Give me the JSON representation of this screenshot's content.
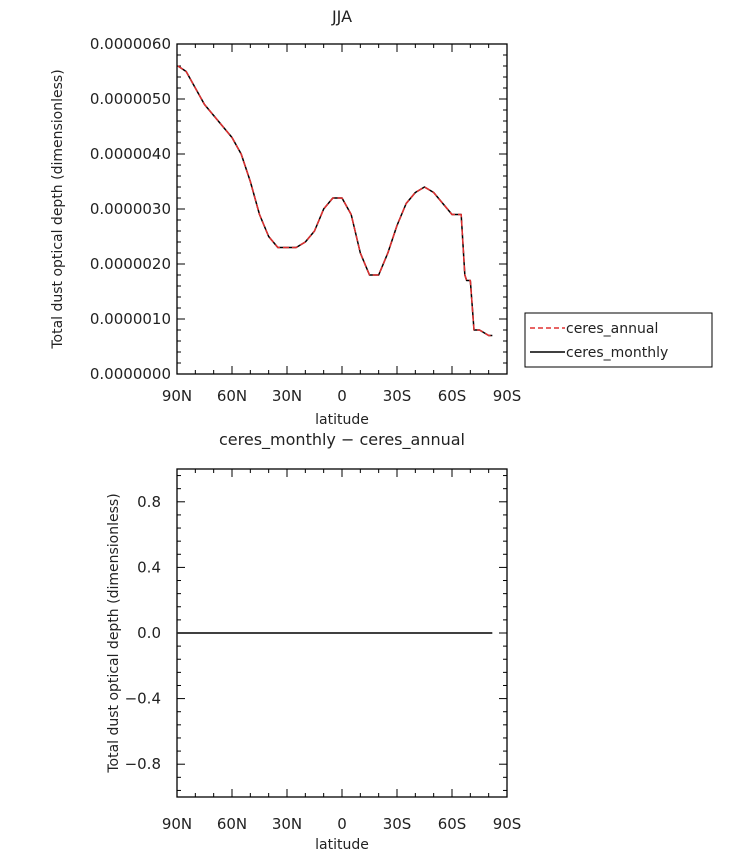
{
  "chart_data": [
    {
      "type": "line",
      "title": "JJA",
      "xlabel": "latitude",
      "ylabel": "Total dust optical depth (dimensionless)",
      "xlim": [
        -90,
        90
      ],
      "ylim": [
        0,
        6e-06
      ],
      "x_ticks": [
        -90,
        -60,
        -30,
        0,
        30,
        60,
        90
      ],
      "x_tick_labels": [
        "90N",
        "60N",
        "30N",
        "0",
        "30S",
        "60S",
        "90S"
      ],
      "y_ticks": [
        0,
        1e-06,
        2e-06,
        3e-06,
        4e-06,
        5e-06,
        6e-06
      ],
      "y_tick_labels": [
        "0.0000000",
        "0.0000010",
        "0.0000020",
        "0.0000030",
        "0.0000040",
        "0.0000050",
        "0.0000060"
      ],
      "legend_position": "right",
      "series": [
        {
          "name": "ceres_annual",
          "color": "#e03030",
          "style": "dashed",
          "x": [
            -89.5,
            -85,
            -80,
            -75,
            -70,
            -65,
            -60,
            -55,
            -50,
            -45,
            -40,
            -35,
            -30,
            -25,
            -20,
            -15,
            -10,
            -5,
            0,
            5,
            10,
            15,
            20,
            25,
            30,
            35,
            40,
            45,
            50,
            55,
            60,
            65,
            67,
            68,
            70,
            72,
            75,
            80,
            82
          ],
          "y": [
            5.6e-06,
            5.5e-06,
            5.2e-06,
            4.9e-06,
            4.7e-06,
            4.5e-06,
            4.3e-06,
            4e-06,
            3.5e-06,
            2.9e-06,
            2.5e-06,
            2.3e-06,
            2.3e-06,
            2.3e-06,
            2.4e-06,
            2.6e-06,
            3e-06,
            3.2e-06,
            3.2e-06,
            2.9e-06,
            2.2e-06,
            1.8e-06,
            1.8e-06,
            2.2e-06,
            2.7e-06,
            3.1e-06,
            3.3e-06,
            3.4e-06,
            3.3e-06,
            3.1e-06,
            2.9e-06,
            2.9e-06,
            1.8e-06,
            1.7e-06,
            1.7e-06,
            8e-07,
            8e-07,
            7e-07,
            7e-07
          ]
        },
        {
          "name": "ceres_monthly",
          "color": "#000000",
          "style": "solid",
          "x": [
            -89.5,
            -85,
            -80,
            -75,
            -70,
            -65,
            -60,
            -55,
            -50,
            -45,
            -40,
            -35,
            -30,
            -25,
            -20,
            -15,
            -10,
            -5,
            0,
            5,
            10,
            15,
            20,
            25,
            30,
            35,
            40,
            45,
            50,
            55,
            60,
            65,
            67,
            68,
            70,
            72,
            75,
            80,
            82
          ],
          "y": [
            5.6e-06,
            5.5e-06,
            5.2e-06,
            4.9e-06,
            4.7e-06,
            4.5e-06,
            4.3e-06,
            4e-06,
            3.5e-06,
            2.9e-06,
            2.5e-06,
            2.3e-06,
            2.3e-06,
            2.3e-06,
            2.4e-06,
            2.6e-06,
            3e-06,
            3.2e-06,
            3.2e-06,
            2.9e-06,
            2.2e-06,
            1.8e-06,
            1.8e-06,
            2.2e-06,
            2.7e-06,
            3.1e-06,
            3.3e-06,
            3.4e-06,
            3.3e-06,
            3.1e-06,
            2.9e-06,
            2.9e-06,
            1.8e-06,
            1.7e-06,
            1.7e-06,
            8e-07,
            8e-07,
            7e-07,
            7e-07
          ]
        }
      ]
    },
    {
      "type": "line",
      "title": "ceres_monthly − ceres_annual",
      "xlabel": "latitude",
      "ylabel": "Total dust optical depth (dimensionless)",
      "xlim": [
        -90,
        90
      ],
      "ylim": [
        -1,
        1
      ],
      "x_ticks": [
        -90,
        -60,
        -30,
        0,
        30,
        60,
        90
      ],
      "x_tick_labels": [
        "90N",
        "60N",
        "30N",
        "0",
        "30S",
        "60S",
        "90S"
      ],
      "y_ticks": [
        -0.8,
        -0.4,
        0.0,
        0.4,
        0.8
      ],
      "y_tick_labels": [
        "−0.8",
        "−0.4",
        "0.0",
        "0.4",
        "0.8"
      ],
      "series": [
        {
          "color": "#000000",
          "style": "solid",
          "x": [
            -89.5,
            82
          ],
          "y": [
            0,
            0
          ]
        }
      ]
    }
  ]
}
